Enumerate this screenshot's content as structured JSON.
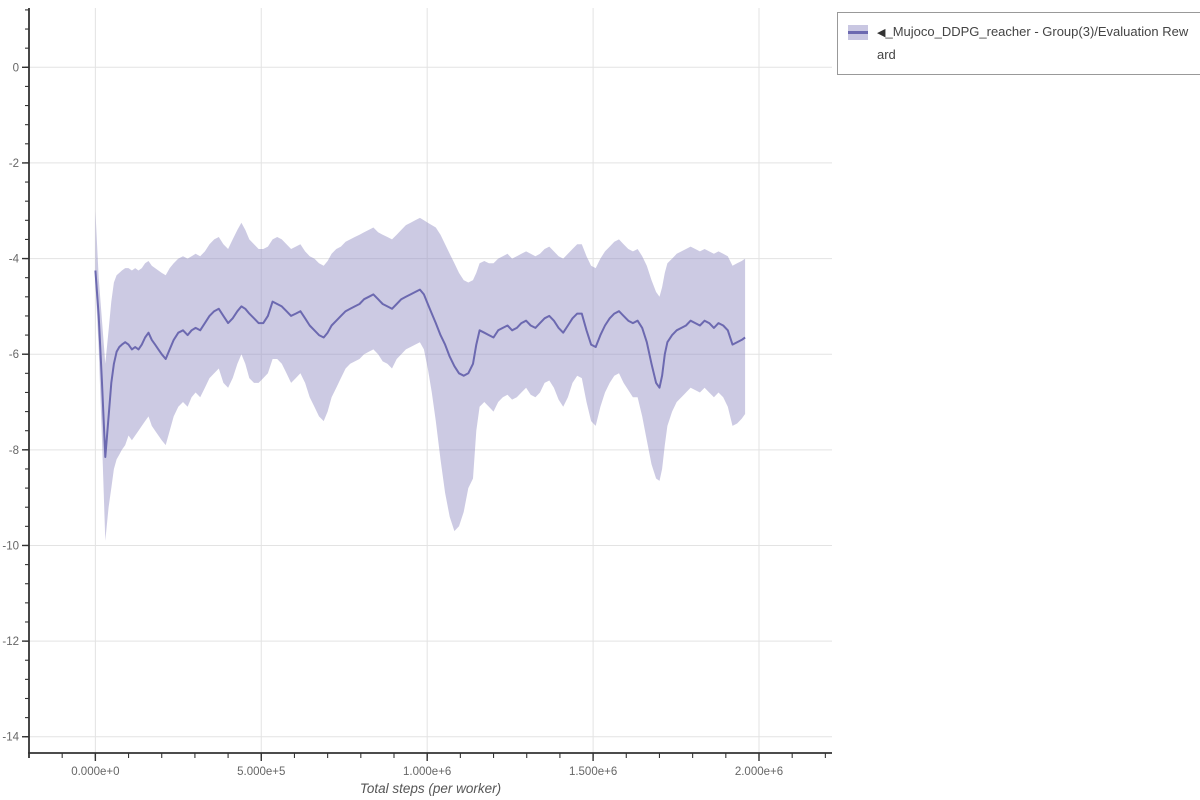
{
  "page": {
    "background": "#ffffff"
  },
  "legend": {
    "arrow_icon": "◀"
  },
  "colors": {
    "grid": "#e3e3e3",
    "spine": "#333333",
    "tick": "#333333",
    "tick_label": "#666666",
    "axis_title": "#555555",
    "legend_border": "#999999",
    "legend_text": "#444444"
  },
  "chart_data": {
    "type": "line",
    "title": "",
    "xlabel": "Total steps (per worker)",
    "ylabel": "",
    "grid": true,
    "legend_position": "top-right",
    "x_axis": {
      "range": [
        -200000,
        2220000
      ],
      "minor_step": 100000,
      "major_ticks": [
        {
          "value": 0,
          "label": "0.000e+0"
        },
        {
          "value": 500000,
          "label": "5.000e+5"
        },
        {
          "value": 1000000,
          "label": "1.000e+6"
        },
        {
          "value": 1500000,
          "label": "1.500e+6"
        },
        {
          "value": 2000000,
          "label": "2.000e+6"
        }
      ]
    },
    "y_axis": {
      "range": [
        -14.34,
        1.24
      ],
      "minor_step": 0.4,
      "major_ticks": [
        {
          "value": 0,
          "label": "0"
        },
        {
          "value": -2,
          "label": "-2"
        },
        {
          "value": -4,
          "label": "-4"
        },
        {
          "value": -6,
          "label": "-6"
        },
        {
          "value": -8,
          "label": "-8"
        },
        {
          "value": -10,
          "label": "-10"
        },
        {
          "value": -12,
          "label": "-12"
        },
        {
          "value": -14,
          "label": "-14"
        }
      ]
    },
    "series": [
      {
        "name": "_Mujoco_DDPG_reacher - Group(3)/Evaluation Reward",
        "line_color": "#6c69b0",
        "band_color": "#8d89c0",
        "band_opacity": 0.45,
        "columns": [
          "step",
          "mean",
          "lower",
          "upper"
        ],
        "points": [
          [
            0,
            -4.25,
            -4.5,
            -3.0
          ],
          [
            10000,
            -5.2,
            -5.9,
            -4.4
          ],
          [
            20000,
            -6.6,
            -7.8,
            -5.3
          ],
          [
            30000,
            -8.15,
            -9.9,
            -6.2
          ],
          [
            40000,
            -7.3,
            -9.2,
            -5.5
          ],
          [
            48000,
            -6.6,
            -8.8,
            -4.9
          ],
          [
            56000,
            -6.2,
            -8.4,
            -4.5
          ],
          [
            64000,
            -5.95,
            -8.2,
            -4.35
          ],
          [
            72000,
            -5.85,
            -8.1,
            -4.3
          ],
          [
            80000,
            -5.8,
            -8.0,
            -4.25
          ],
          [
            90000,
            -5.75,
            -7.9,
            -4.2
          ],
          [
            100000,
            -5.8,
            -7.7,
            -4.2
          ],
          [
            110000,
            -5.9,
            -7.8,
            -4.25
          ],
          [
            120000,
            -5.85,
            -7.7,
            -4.2
          ],
          [
            130000,
            -5.9,
            -7.6,
            -4.25
          ],
          [
            140000,
            -5.8,
            -7.5,
            -4.2
          ],
          [
            150000,
            -5.65,
            -7.4,
            -4.1
          ],
          [
            160000,
            -5.55,
            -7.3,
            -4.05
          ],
          [
            170000,
            -5.7,
            -7.5,
            -4.15
          ],
          [
            180000,
            -5.8,
            -7.6,
            -4.2
          ],
          [
            190000,
            -5.9,
            -7.7,
            -4.25
          ],
          [
            200000,
            -6.0,
            -7.8,
            -4.3
          ],
          [
            212000,
            -6.1,
            -7.9,
            -4.35
          ],
          [
            224000,
            -5.9,
            -7.6,
            -4.2
          ],
          [
            236000,
            -5.7,
            -7.3,
            -4.1
          ],
          [
            250000,
            -5.55,
            -7.1,
            -4.0
          ],
          [
            264000,
            -5.5,
            -7.0,
            -3.95
          ],
          [
            278000,
            -5.6,
            -7.1,
            -4.0
          ],
          [
            290000,
            -5.5,
            -6.9,
            -3.95
          ],
          [
            302000,
            -5.45,
            -6.8,
            -3.9
          ],
          [
            316000,
            -5.5,
            -6.9,
            -3.95
          ],
          [
            330000,
            -5.35,
            -6.7,
            -3.85
          ],
          [
            344000,
            -5.2,
            -6.5,
            -3.7
          ],
          [
            358000,
            -5.1,
            -6.4,
            -3.6
          ],
          [
            372000,
            -5.05,
            -6.3,
            -3.55
          ],
          [
            386000,
            -5.2,
            -6.6,
            -3.7
          ],
          [
            400000,
            -5.35,
            -6.7,
            -3.8
          ],
          [
            414000,
            -5.25,
            -6.5,
            -3.6
          ],
          [
            428000,
            -5.1,
            -6.2,
            -3.4
          ],
          [
            440000,
            -5.0,
            -6.0,
            -3.25
          ],
          [
            452000,
            -5.05,
            -6.2,
            -3.4
          ],
          [
            464000,
            -5.15,
            -6.5,
            -3.6
          ],
          [
            478000,
            -5.25,
            -6.6,
            -3.7
          ],
          [
            492000,
            -5.35,
            -6.6,
            -3.8
          ],
          [
            506000,
            -5.35,
            -6.5,
            -3.8
          ],
          [
            520000,
            -5.2,
            -6.4,
            -3.75
          ],
          [
            534000,
            -4.9,
            -6.1,
            -3.6
          ],
          [
            548000,
            -4.95,
            -6.1,
            -3.55
          ],
          [
            562000,
            -5.0,
            -6.2,
            -3.6
          ],
          [
            576000,
            -5.1,
            -6.4,
            -3.7
          ],
          [
            590000,
            -5.2,
            -6.6,
            -3.8
          ],
          [
            604000,
            -5.15,
            -6.5,
            -3.75
          ],
          [
            618000,
            -5.1,
            -6.4,
            -3.7
          ],
          [
            632000,
            -5.25,
            -6.6,
            -3.85
          ],
          [
            646000,
            -5.4,
            -6.9,
            -3.95
          ],
          [
            660000,
            -5.5,
            -7.1,
            -4.0
          ],
          [
            674000,
            -5.6,
            -7.3,
            -4.1
          ],
          [
            688000,
            -5.65,
            -7.4,
            -4.15
          ],
          [
            700000,
            -5.55,
            -7.2,
            -4.05
          ],
          [
            712000,
            -5.4,
            -6.9,
            -3.9
          ],
          [
            726000,
            -5.3,
            -6.7,
            -3.8
          ],
          [
            740000,
            -5.2,
            -6.5,
            -3.75
          ],
          [
            754000,
            -5.1,
            -6.3,
            -3.65
          ],
          [
            768000,
            -5.05,
            -6.2,
            -3.6
          ],
          [
            782000,
            -5.0,
            -6.15,
            -3.55
          ],
          [
            796000,
            -4.95,
            -6.1,
            -3.5
          ],
          [
            810000,
            -4.85,
            -6.0,
            -3.45
          ],
          [
            824000,
            -4.8,
            -5.95,
            -3.4
          ],
          [
            838000,
            -4.75,
            -5.9,
            -3.35
          ],
          [
            852000,
            -4.85,
            -6.0,
            -3.45
          ],
          [
            866000,
            -4.95,
            -6.15,
            -3.5
          ],
          [
            880000,
            -5.0,
            -6.2,
            -3.55
          ],
          [
            894000,
            -5.05,
            -6.3,
            -3.6
          ],
          [
            908000,
            -4.95,
            -6.1,
            -3.5
          ],
          [
            922000,
            -4.85,
            -6.0,
            -3.4
          ],
          [
            936000,
            -4.8,
            -5.9,
            -3.3
          ],
          [
            950000,
            -4.75,
            -5.85,
            -3.25
          ],
          [
            964000,
            -4.7,
            -5.8,
            -3.2
          ],
          [
            978000,
            -4.65,
            -5.75,
            -3.15
          ],
          [
            990000,
            -4.75,
            -5.9,
            -3.2
          ],
          [
            1002000,
            -4.95,
            -6.3,
            -3.25
          ],
          [
            1014000,
            -5.15,
            -6.8,
            -3.3
          ],
          [
            1026000,
            -5.35,
            -7.4,
            -3.35
          ],
          [
            1040000,
            -5.6,
            -8.2,
            -3.5
          ],
          [
            1054000,
            -5.8,
            -8.9,
            -3.7
          ],
          [
            1068000,
            -6.05,
            -9.4,
            -3.9
          ],
          [
            1082000,
            -6.25,
            -9.7,
            -4.1
          ],
          [
            1096000,
            -6.4,
            -9.6,
            -4.3
          ],
          [
            1110000,
            -6.45,
            -9.3,
            -4.45
          ],
          [
            1124000,
            -6.4,
            -8.8,
            -4.5
          ],
          [
            1138000,
            -6.2,
            -8.6,
            -4.45
          ],
          [
            1148000,
            -5.8,
            -7.6,
            -4.3
          ],
          [
            1158000,
            -5.5,
            -7.1,
            -4.1
          ],
          [
            1172000,
            -5.55,
            -7.0,
            -4.05
          ],
          [
            1186000,
            -5.6,
            -7.1,
            -4.1
          ],
          [
            1200000,
            -5.65,
            -7.2,
            -4.1
          ],
          [
            1214000,
            -5.5,
            -7.0,
            -4.0
          ],
          [
            1228000,
            -5.45,
            -6.9,
            -3.95
          ],
          [
            1242000,
            -5.4,
            -6.85,
            -3.9
          ],
          [
            1256000,
            -5.5,
            -6.95,
            -4.0
          ],
          [
            1270000,
            -5.45,
            -6.9,
            -3.95
          ],
          [
            1284000,
            -5.35,
            -6.8,
            -3.9
          ],
          [
            1298000,
            -5.3,
            -6.7,
            -3.85
          ],
          [
            1312000,
            -5.4,
            -6.85,
            -3.9
          ],
          [
            1326000,
            -5.45,
            -6.9,
            -3.95
          ],
          [
            1340000,
            -5.35,
            -6.8,
            -3.9
          ],
          [
            1354000,
            -5.25,
            -6.6,
            -3.8
          ],
          [
            1368000,
            -5.2,
            -6.55,
            -3.75
          ],
          [
            1382000,
            -5.3,
            -6.7,
            -3.85
          ],
          [
            1396000,
            -5.45,
            -6.95,
            -3.95
          ],
          [
            1410000,
            -5.55,
            -7.1,
            -4.0
          ],
          [
            1424000,
            -5.4,
            -6.9,
            -3.9
          ],
          [
            1438000,
            -5.25,
            -6.6,
            -3.8
          ],
          [
            1452000,
            -5.15,
            -6.45,
            -3.7
          ],
          [
            1466000,
            -5.15,
            -6.5,
            -3.7
          ],
          [
            1480000,
            -5.5,
            -7.0,
            -3.95
          ],
          [
            1494000,
            -5.8,
            -7.4,
            -4.15
          ],
          [
            1508000,
            -5.85,
            -7.5,
            -4.2
          ],
          [
            1522000,
            -5.6,
            -7.1,
            -4.0
          ],
          [
            1536000,
            -5.4,
            -6.8,
            -3.85
          ],
          [
            1550000,
            -5.25,
            -6.6,
            -3.75
          ],
          [
            1564000,
            -5.15,
            -6.45,
            -3.65
          ],
          [
            1578000,
            -5.1,
            -6.4,
            -3.6
          ],
          [
            1592000,
            -5.2,
            -6.6,
            -3.7
          ],
          [
            1606000,
            -5.3,
            -6.75,
            -3.8
          ],
          [
            1620000,
            -5.35,
            -6.9,
            -3.85
          ],
          [
            1634000,
            -5.3,
            -6.9,
            -3.8
          ],
          [
            1648000,
            -5.45,
            -7.3,
            -3.95
          ],
          [
            1662000,
            -5.75,
            -7.8,
            -4.15
          ],
          [
            1676000,
            -6.2,
            -8.3,
            -4.45
          ],
          [
            1690000,
            -6.6,
            -8.6,
            -4.7
          ],
          [
            1700000,
            -6.7,
            -8.65,
            -4.8
          ],
          [
            1708000,
            -6.45,
            -8.4,
            -4.6
          ],
          [
            1716000,
            -6.0,
            -7.9,
            -4.3
          ],
          [
            1724000,
            -5.75,
            -7.5,
            -4.1
          ],
          [
            1738000,
            -5.6,
            -7.2,
            -4.0
          ],
          [
            1752000,
            -5.5,
            -7.0,
            -3.9
          ],
          [
            1766000,
            -5.45,
            -6.9,
            -3.85
          ],
          [
            1780000,
            -5.4,
            -6.8,
            -3.8
          ],
          [
            1794000,
            -5.3,
            -6.7,
            -3.75
          ],
          [
            1808000,
            -5.35,
            -6.75,
            -3.8
          ],
          [
            1822000,
            -5.4,
            -6.8,
            -3.85
          ],
          [
            1836000,
            -5.3,
            -6.7,
            -3.8
          ],
          [
            1850000,
            -5.35,
            -6.8,
            -3.85
          ],
          [
            1864000,
            -5.45,
            -6.9,
            -3.9
          ],
          [
            1878000,
            -5.35,
            -6.8,
            -3.85
          ],
          [
            1892000,
            -5.4,
            -6.9,
            -3.9
          ],
          [
            1906000,
            -5.5,
            -7.1,
            -3.95
          ],
          [
            1920000,
            -5.8,
            -7.5,
            -4.15
          ],
          [
            1934000,
            -5.75,
            -7.45,
            -4.1
          ],
          [
            1948000,
            -5.7,
            -7.35,
            -4.05
          ],
          [
            1958000,
            -5.65,
            -7.25,
            -4.0
          ]
        ]
      }
    ]
  }
}
